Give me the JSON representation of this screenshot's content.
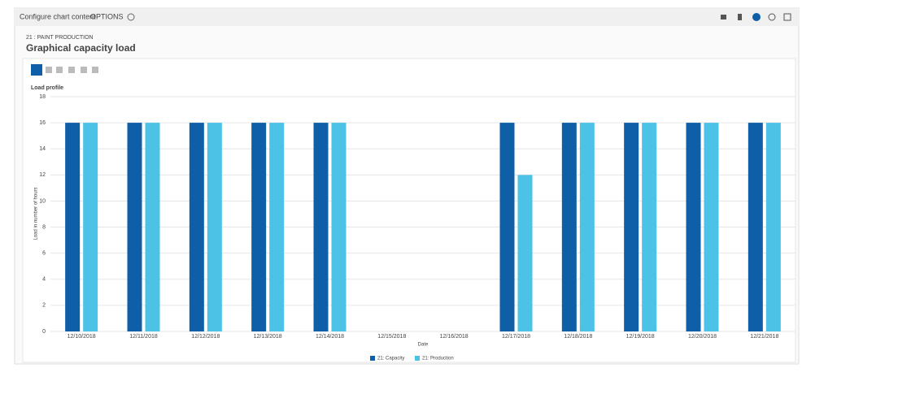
{
  "header": {
    "breadcrumb": "Configure chart content",
    "options": "OPTIONS"
  },
  "page": {
    "section": "21 : PAINT PRODUCTION",
    "title": "Graphical capacity load"
  },
  "chart_data": {
    "type": "bar",
    "title": "Load profile",
    "x_label": "Date",
    "y_label": "Load in number of hours",
    "categories": [
      "12/10/2018",
      "12/11/2018",
      "12/12/2018",
      "12/13/2018",
      "12/14/2018",
      "12/15/2018",
      "12/16/2018",
      "12/17/2018",
      "12/18/2018",
      "12/19/2018",
      "12/20/2018",
      "12/21/2018"
    ],
    "series": [
      {
        "name": "21: Capacity",
        "color": "#0e5ea8",
        "values": [
          16,
          16,
          16,
          16,
          16,
          0,
          0,
          16,
          16,
          16,
          16,
          16
        ]
      },
      {
        "name": "21: Production",
        "color": "#4cc2e6",
        "values": [
          16,
          16,
          16,
          16,
          16,
          0,
          0,
          12,
          16,
          16,
          16,
          16
        ]
      }
    ],
    "ylim": [
      0,
      18
    ],
    "yticks": [
      0,
      2,
      4,
      6,
      8,
      10,
      12,
      14,
      16,
      18
    ],
    "grid": true
  }
}
